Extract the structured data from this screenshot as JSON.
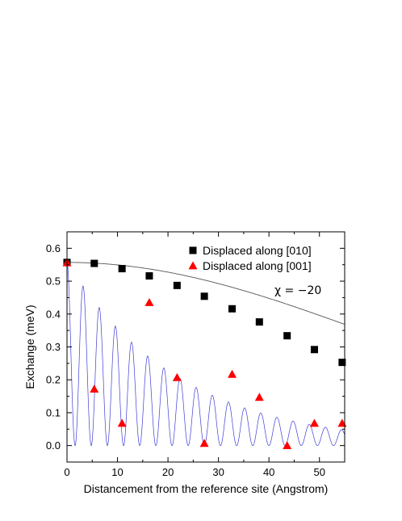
{
  "chart_data": {
    "type": "scatter",
    "xlabel": "Distancement from the reference site (Angstrom)",
    "ylabel": "Exchange (meV)",
    "xlim": [
      0,
      55
    ],
    "ylim": [
      -0.05,
      0.65
    ],
    "xticks": [
      0,
      10,
      20,
      30,
      40,
      50
    ],
    "yticks": [
      0.0,
      0.1,
      0.2,
      0.3,
      0.4,
      0.5,
      0.6
    ],
    "xtick_labels": [
      "0",
      "10",
      "20",
      "30",
      "40",
      "50"
    ],
    "ytick_labels": [
      "0.0",
      "0.1",
      "0.2",
      "0.3",
      "0.4",
      "0.5",
      "0.6"
    ],
    "legend_position": "top-right",
    "annotation": "χ = −20",
    "series": [
      {
        "name": "Displaced along [010]",
        "marker": "square",
        "color": "#000000",
        "x": [
          0,
          5.4,
          10.9,
          16.3,
          21.8,
          27.2,
          32.7,
          38.1,
          43.6,
          49.0,
          54.5
        ],
        "y": [
          0.557,
          0.554,
          0.538,
          0.516,
          0.487,
          0.454,
          0.416,
          0.376,
          0.334,
          0.292,
          0.253
        ]
      },
      {
        "name": "Displaced along [001]",
        "marker": "triangle",
        "color": "#ff0000",
        "x": [
          0,
          5.4,
          10.9,
          16.3,
          21.8,
          27.2,
          32.7,
          38.1,
          43.6,
          49.0,
          54.5
        ],
        "y": [
          0.556,
          0.172,
          0.068,
          0.435,
          0.207,
          0.007,
          0.217,
          0.147,
          0.0,
          0.068,
          0.068
        ]
      }
    ],
    "curves": [
      {
        "role": "smooth fit through [010] points",
        "color": "#555555",
        "y0": 0.557,
        "decay_width": 85.6
      },
      {
        "role": "oscillating exchange, [001] direction",
        "color": "#3d3dd6",
        "oscillation_period": 3.2,
        "amplitude_at_0": 0.56,
        "amplitude_at_55": 0.047
      }
    ]
  }
}
